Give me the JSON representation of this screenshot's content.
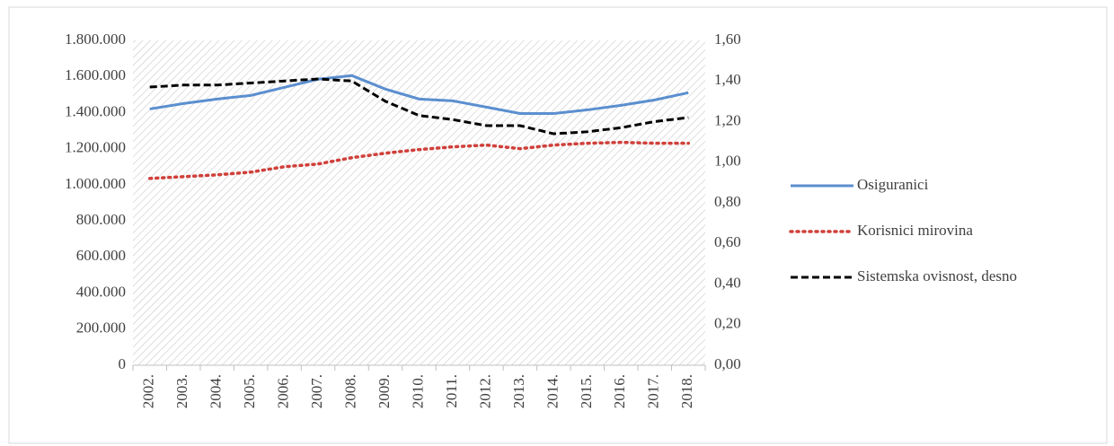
{
  "chart_data": {
    "type": "line",
    "categories": [
      "2002.",
      "2003.",
      "2004.",
      "2005.",
      "2006.",
      "2007.",
      "2008.",
      "2009.",
      "2010.",
      "2011.",
      "2012.",
      "2013.",
      "2014.",
      "2015.",
      "2016.",
      "2017.",
      "2018."
    ],
    "series": [
      {
        "name": "Osiguranici",
        "color": "#5b8fcf",
        "style": "solid",
        "values": [
          1420000,
          1450000,
          1475000,
          1495000,
          1540000,
          1585000,
          1605000,
          1530000,
          1475000,
          1465000,
          1430000,
          1395000,
          1395000,
          1415000,
          1440000,
          1470000,
          1510000
        ]
      },
      {
        "name": "Korisnici mirovina",
        "color": "#d0403a",
        "style": "dotted",
        "values": [
          1035000,
          1045000,
          1055000,
          1070000,
          1100000,
          1115000,
          1150000,
          1175000,
          1195000,
          1210000,
          1220000,
          1200000,
          1220000,
          1230000,
          1235000,
          1230000,
          1230000
        ]
      },
      {
        "name": "Sistemska ovisnost, desno",
        "color": "#000000",
        "style": "dashed",
        "axis": "y2",
        "values": [
          1.37,
          1.38,
          1.38,
          1.39,
          1.4,
          1.41,
          1.4,
          1.3,
          1.23,
          1.21,
          1.18,
          1.18,
          1.14,
          1.15,
          1.17,
          1.2,
          1.22
        ]
      }
    ],
    "ylim": [
      0,
      1800000
    ],
    "yticks": [
      0,
      {
        "value": 200000,
        "label": "200.000"
      },
      {
        "value": 400000,
        "label": "400.000"
      },
      {
        "value": 600000,
        "label": "600.000"
      },
      {
        "value": 800000,
        "label": "800.000"
      },
      {
        "value": 1000000,
        "label": "1.000.000"
      },
      {
        "value": 1200000,
        "label": "1.200.000"
      },
      {
        "value": 1400000,
        "label": "1.400.000"
      },
      {
        "value": 1600000,
        "label": "1.600.000"
      },
      {
        "value": 1800000,
        "label": "1.800.000"
      }
    ],
    "y2lim": [
      0,
      1.6
    ],
    "y2ticks": [
      {
        "value": 0,
        "label": "0,00"
      },
      {
        "value": 0.2,
        "label": "0,20"
      },
      {
        "value": 0.4,
        "label": "0,40"
      },
      {
        "value": 0.6,
        "label": "0,60"
      },
      {
        "value": 0.8,
        "label": "0,80"
      },
      {
        "value": 1.0,
        "label": "1,00"
      },
      {
        "value": 1.2,
        "label": "1,20"
      },
      {
        "value": 1.4,
        "label": "1,40"
      },
      {
        "value": 1.6,
        "label": "1,60"
      }
    ],
    "legend": "right",
    "grid": false
  }
}
